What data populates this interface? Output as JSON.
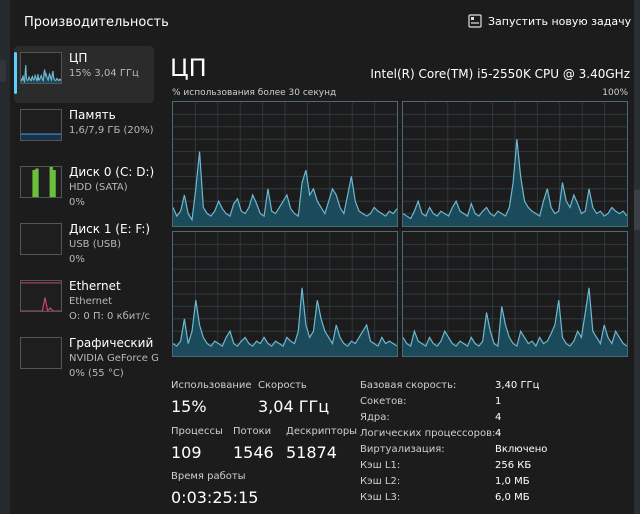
{
  "header": {
    "title": "Производительность",
    "run_task_label": "Запустить новую задачу",
    "run_task_icon": "run-task-icon"
  },
  "sidebar": {
    "items": [
      {
        "name": "ЦП",
        "sub1": "15% 3,04 ГГц",
        "sub2": "",
        "active": true
      },
      {
        "name": "Память",
        "sub1": "1,6/7,9 ГБ (20%)",
        "sub2": "",
        "active": false
      },
      {
        "name": "Диск 0 (C: D:)",
        "sub1": "HDD (SATA)",
        "sub2": "0%",
        "active": false
      },
      {
        "name": "Диск 1 (E: F:)",
        "sub1": "USB (USB)",
        "sub2": "0%",
        "active": false
      },
      {
        "name": "Ethernet",
        "sub1": "Ethernet",
        "sub2": "О: 0 П: 0 кбит/с",
        "active": false
      },
      {
        "name": "Графический",
        "sub1": "NVIDIA GeForce G",
        "sub2": "0% (55 °C)",
        "active": false
      }
    ]
  },
  "main": {
    "title": "ЦП",
    "model": "Intel(R) Core(TM) i5-2550K CPU @ 3.40GHz",
    "graph_label": "% использования более 30 секунд",
    "graph_max": "100%"
  },
  "stats": {
    "usage_label": "Использование",
    "usage_value": "15%",
    "speed_label": "Скорость",
    "speed_value": "3,04 ГГц",
    "processes_label": "Процессы",
    "processes_value": "109",
    "threads_label": "Потоки",
    "threads_value": "1546",
    "handles_label": "Дескрипторы",
    "handles_value": "51874",
    "uptime_label": "Время работы",
    "uptime_value": "0:03:25:15"
  },
  "specs": [
    {
      "label": "Базовая скорость:",
      "value": "3,40 ГГц"
    },
    {
      "label": "Сокетов:",
      "value": "1"
    },
    {
      "label": "Ядра:",
      "value": "4"
    },
    {
      "label": "Логических процессоров:",
      "value": "4"
    },
    {
      "label": "Виртуализация:",
      "value": "Включено"
    },
    {
      "label": "Кэш L1:",
      "value": "256 КБ"
    },
    {
      "label": "Кэш L2:",
      "value": "1,0 МБ"
    },
    {
      "label": "Кэш L3:",
      "value": "6,0 МБ"
    }
  ],
  "colors": {
    "accent": "#60cdff",
    "cpu_line": "#6fb8cf",
    "cpu_fill": "#1b4a5a",
    "memory_line": "#4a90c8",
    "disk_fill": "#6bbf3a",
    "ethernet_line": "#c04a78"
  },
  "graphs": {
    "cpu_cores": [
      [
        15,
        8,
        12,
        25,
        10,
        5,
        30,
        60,
        15,
        10,
        8,
        12,
        20,
        14,
        10,
        8,
        18,
        22,
        12,
        10,
        15,
        25,
        18,
        10,
        8,
        30,
        12,
        10,
        15,
        20,
        25,
        14,
        10,
        8,
        35,
        45,
        25,
        30,
        20,
        15,
        10,
        20,
        30,
        25,
        15,
        10,
        25,
        40,
        20,
        12,
        10,
        8,
        10,
        15,
        12,
        10,
        8,
        12,
        10,
        14
      ],
      [
        10,
        8,
        6,
        12,
        20,
        10,
        8,
        15,
        10,
        8,
        12,
        10,
        8,
        15,
        20,
        12,
        10,
        8,
        18,
        10,
        8,
        12,
        15,
        10,
        8,
        12,
        10,
        8,
        15,
        35,
        70,
        40,
        20,
        15,
        12,
        10,
        8,
        20,
        30,
        15,
        10,
        12,
        35,
        20,
        15,
        25,
        18,
        10,
        12,
        30,
        15,
        10,
        12,
        8,
        10,
        15,
        12,
        10,
        12,
        8
      ],
      [
        10,
        8,
        12,
        30,
        10,
        20,
        45,
        25,
        15,
        10,
        8,
        12,
        10,
        8,
        15,
        20,
        10,
        8,
        12,
        15,
        10,
        8,
        12,
        10,
        15,
        10,
        8,
        12,
        10,
        8,
        15,
        12,
        10,
        20,
        55,
        25,
        15,
        20,
        45,
        30,
        20,
        15,
        10,
        25,
        15,
        10,
        8,
        12,
        10,
        15,
        20,
        25,
        12,
        10,
        8,
        15,
        10,
        12,
        10,
        8
      ],
      [
        15,
        10,
        8,
        20,
        12,
        10,
        8,
        15,
        10,
        8,
        12,
        20,
        15,
        10,
        8,
        12,
        10,
        8,
        15,
        10,
        8,
        12,
        35,
        20,
        10,
        8,
        40,
        25,
        15,
        10,
        8,
        20,
        15,
        10,
        12,
        8,
        15,
        10,
        12,
        18,
        25,
        45,
        15,
        10,
        8,
        12,
        20,
        15,
        35,
        55,
        20,
        15,
        10,
        25,
        15,
        10,
        20,
        15,
        10,
        8
      ]
    ],
    "memory": [
      20,
      20,
      20,
      20,
      20,
      20,
      20,
      20,
      20,
      20,
      20,
      20
    ],
    "disk0": [
      0,
      0,
      0,
      0,
      90,
      95,
      0,
      0,
      0,
      0,
      100,
      90,
      0,
      0
    ],
    "ethernet": [
      0,
      0,
      0,
      0,
      0,
      0,
      0,
      0,
      0,
      45,
      0,
      10,
      0,
      0,
      0,
      0
    ]
  }
}
